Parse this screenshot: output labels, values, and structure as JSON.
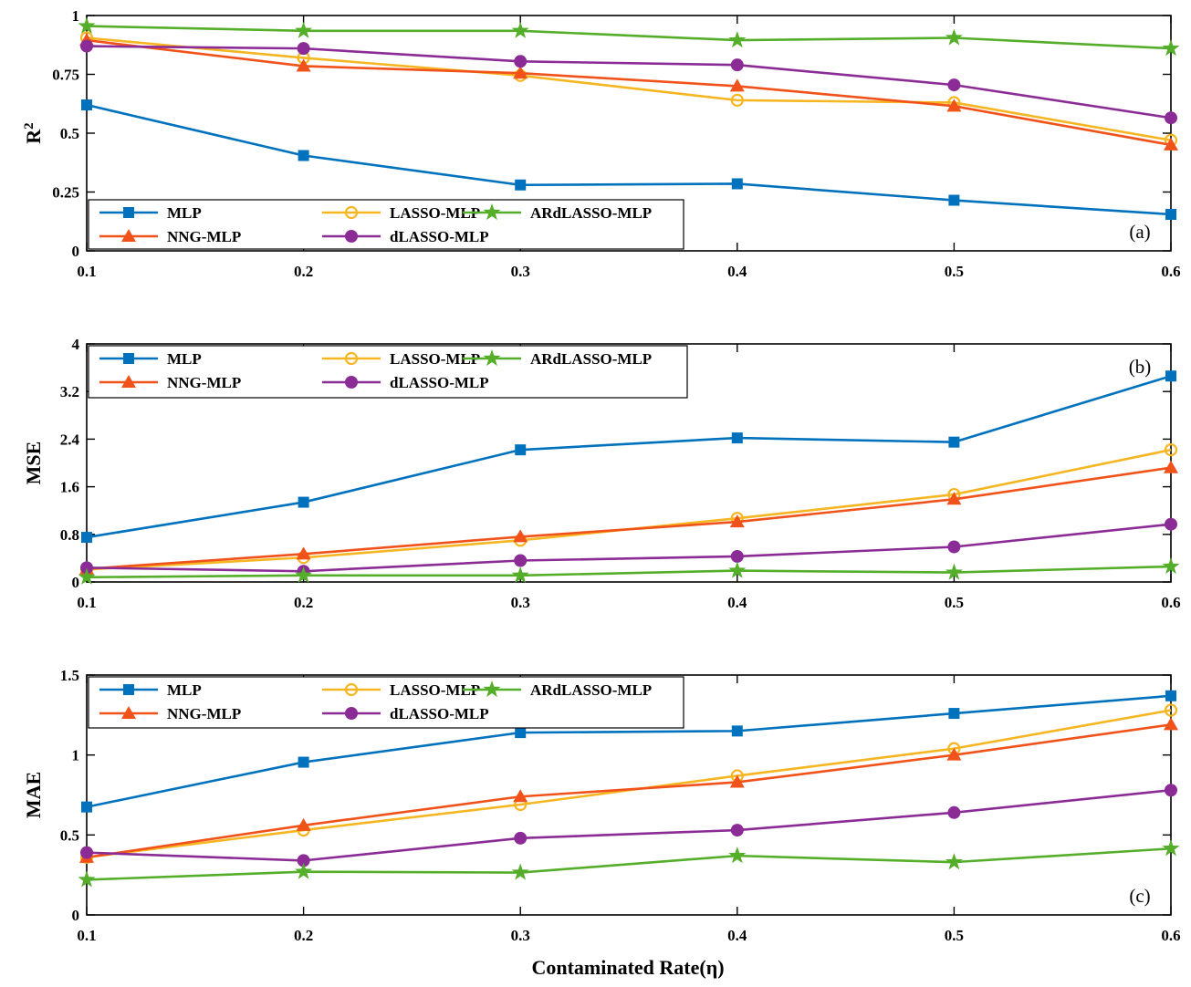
{
  "x_axis_label": "Contaminated Rate(η)",
  "legend_labels": [
    "MLP",
    "LASSO-MLP",
    "ARdLASSO-MLP",
    "NNG-MLP",
    "dLASSO-MLP"
  ],
  "colors": {
    "MLP": "#0072BD",
    "NNG-MLP": "#F0521A",
    "LASSO-MLP": "#F5B622",
    "dLASSO-MLP": "#8B2C96",
    "ARdLASSO-MLP": "#55AE2A"
  },
  "chart_data": [
    {
      "type": "line",
      "panel_label": "(a)",
      "ylabel": "R",
      "ylabel_sup": "2",
      "x": [
        0.1,
        0.2,
        0.3,
        0.4,
        0.5,
        0.6
      ],
      "xticks": [
        "0.1",
        "0.2",
        "0.3",
        "0.4",
        "0.5",
        "0.6"
      ],
      "xlim": [
        0.1,
        0.6
      ],
      "ylim": [
        0,
        1
      ],
      "yticks": [
        0,
        0.25,
        0.5,
        0.75,
        1
      ],
      "ytick_labels": [
        "0",
        "0.25",
        "0.5",
        "0.75",
        "1"
      ],
      "legend_position": "bottom-left",
      "series": [
        {
          "name": "MLP",
          "marker": "square",
          "values": [
            0.62,
            0.405,
            0.28,
            0.285,
            0.215,
            0.155
          ]
        },
        {
          "name": "NNG-MLP",
          "marker": "triangle",
          "values": [
            0.895,
            0.785,
            0.755,
            0.7,
            0.615,
            0.45
          ]
        },
        {
          "name": "LASSO-MLP",
          "marker": "circle-open",
          "values": [
            0.905,
            0.82,
            0.745,
            0.64,
            0.63,
            0.47
          ]
        },
        {
          "name": "dLASSO-MLP",
          "marker": "circle",
          "values": [
            0.87,
            0.86,
            0.805,
            0.79,
            0.705,
            0.565
          ]
        },
        {
          "name": "ARdLASSO-MLP",
          "marker": "star",
          "values": [
            0.955,
            0.935,
            0.935,
            0.895,
            0.905,
            0.86
          ]
        }
      ]
    },
    {
      "type": "line",
      "panel_label": "(b)",
      "ylabel": "MSE",
      "x": [
        0.1,
        0.2,
        0.3,
        0.4,
        0.5,
        0.6
      ],
      "xticks": [
        "0.1",
        "0.2",
        "0.3",
        "0.4",
        "0.5",
        "0.6"
      ],
      "xlim": [
        0.1,
        0.6
      ],
      "ylim": [
        0,
        4
      ],
      "yticks": [
        0,
        0.8,
        1.6,
        2.4,
        3.2,
        4
      ],
      "ytick_labels": [
        "0",
        "0.8",
        "1.6",
        "2.4",
        "3.2",
        "4"
      ],
      "legend_position": "top-left",
      "series": [
        {
          "name": "MLP",
          "marker": "square",
          "values": [
            0.75,
            1.34,
            2.22,
            2.42,
            2.35,
            3.46
          ]
        },
        {
          "name": "NNG-MLP",
          "marker": "triangle",
          "values": [
            0.22,
            0.47,
            0.76,
            1.01,
            1.39,
            1.92
          ]
        },
        {
          "name": "LASSO-MLP",
          "marker": "circle-open",
          "values": [
            0.21,
            0.41,
            0.7,
            1.07,
            1.47,
            2.22
          ]
        },
        {
          "name": "dLASSO-MLP",
          "marker": "circle",
          "values": [
            0.24,
            0.18,
            0.36,
            0.43,
            0.59,
            0.97
          ]
        },
        {
          "name": "ARdLASSO-MLP",
          "marker": "star",
          "values": [
            0.08,
            0.11,
            0.11,
            0.19,
            0.16,
            0.26
          ]
        }
      ]
    },
    {
      "type": "line",
      "panel_label": "(c)",
      "ylabel": "MAE",
      "x": [
        0.1,
        0.2,
        0.3,
        0.4,
        0.5,
        0.6
      ],
      "xticks": [
        "0.1",
        "0.2",
        "0.3",
        "0.4",
        "0.5",
        "0.6"
      ],
      "xlim": [
        0.1,
        0.6
      ],
      "ylim": [
        0,
        1.5
      ],
      "yticks": [
        0,
        0.5,
        1,
        1.5
      ],
      "ytick_labels": [
        "0",
        "0.5",
        "1",
        "1.5"
      ],
      "legend_position": "top-left",
      "series": [
        {
          "name": "MLP",
          "marker": "square",
          "values": [
            0.675,
            0.955,
            1.14,
            1.15,
            1.26,
            1.37
          ]
        },
        {
          "name": "NNG-MLP",
          "marker": "triangle",
          "values": [
            0.36,
            0.56,
            0.74,
            0.83,
            1.0,
            1.19
          ]
        },
        {
          "name": "LASSO-MLP",
          "marker": "circle-open",
          "values": [
            0.36,
            0.53,
            0.69,
            0.87,
            1.04,
            1.28
          ]
        },
        {
          "name": "dLASSO-MLP",
          "marker": "circle",
          "values": [
            0.39,
            0.34,
            0.48,
            0.53,
            0.64,
            0.78
          ]
        },
        {
          "name": "ARdLASSO-MLP",
          "marker": "star",
          "values": [
            0.22,
            0.27,
            0.265,
            0.37,
            0.33,
            0.415
          ]
        }
      ]
    }
  ]
}
